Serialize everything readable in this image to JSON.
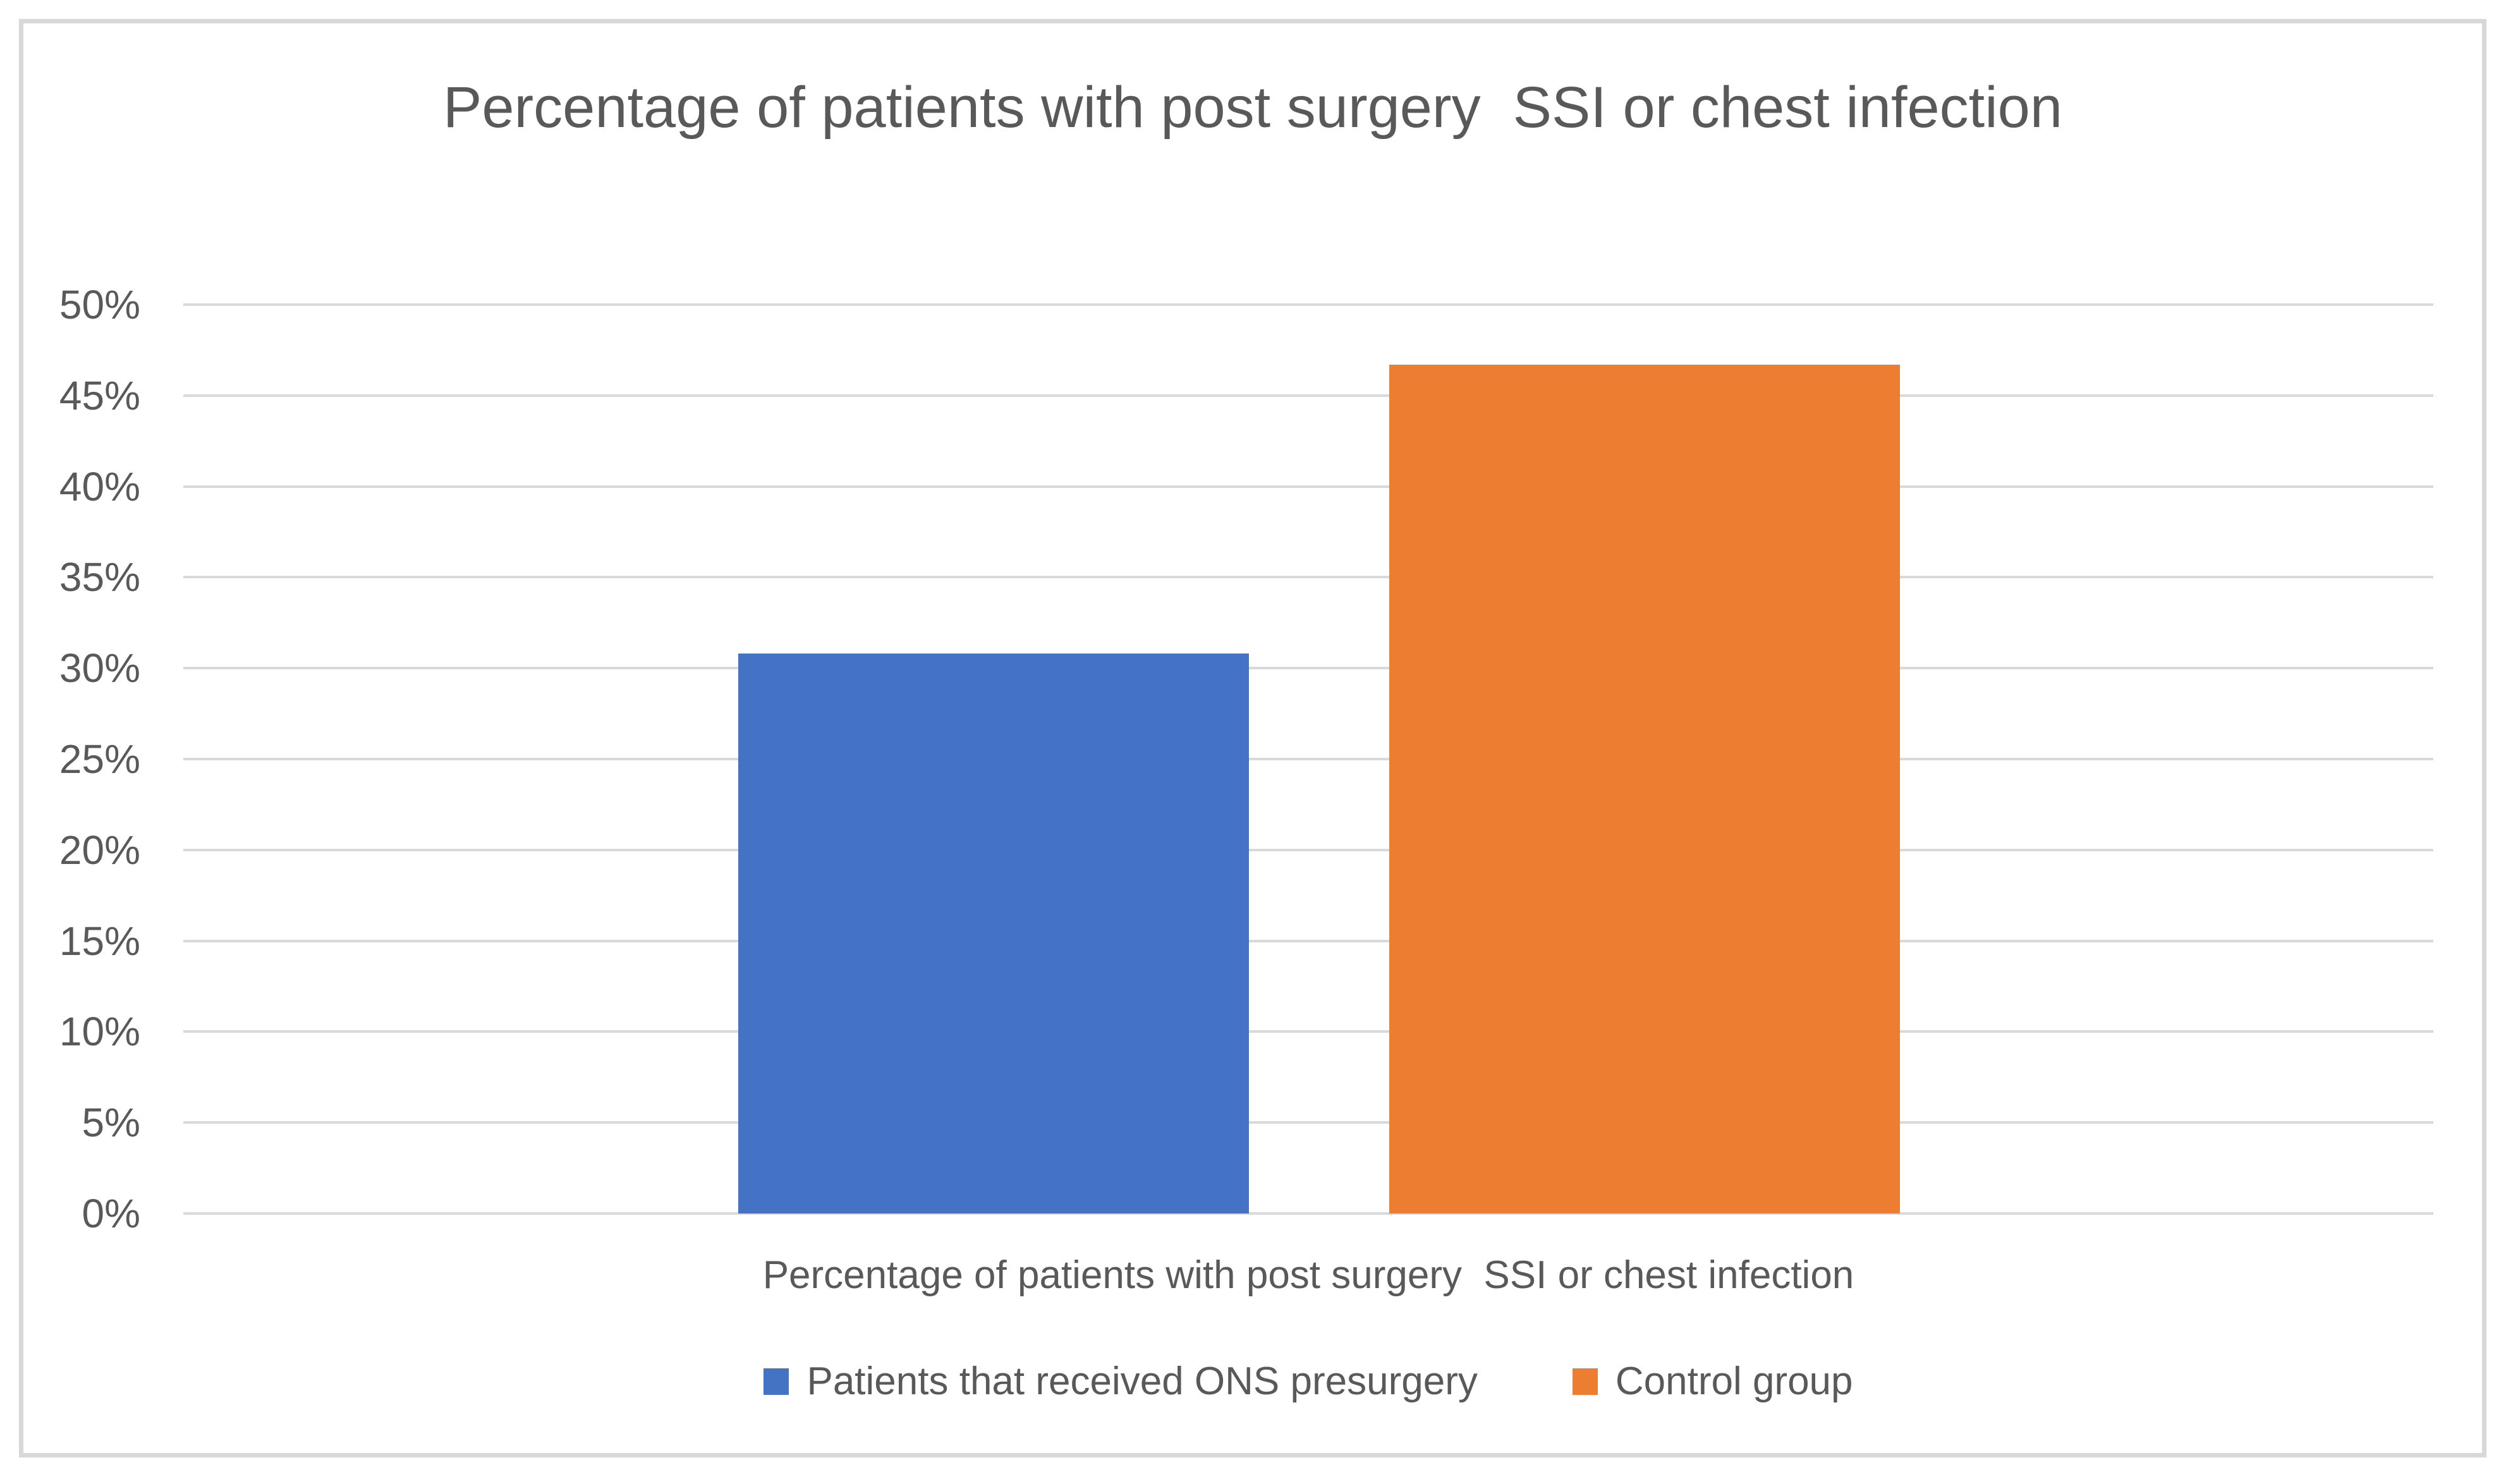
{
  "chart_data": {
    "type": "bar",
    "title": "Percentage of patients with post surgery  SSI or chest infection",
    "categories": [
      "Percentage of patients with post surgery  SSI or chest infection"
    ],
    "series": [
      {
        "name": "Patients that received ONS presurgery",
        "values": [
          30.8
        ],
        "color": "#4472C4"
      },
      {
        "name": "Control group",
        "values": [
          46.7
        ],
        "color": "#ED7D31"
      }
    ],
    "xlabel": "",
    "ylabel": "",
    "ylim": [
      0,
      50
    ],
    "ytick_step": 5,
    "ytick_labels": [
      "0%",
      "5%",
      "10%",
      "15%",
      "20%",
      "25%",
      "30%",
      "35%",
      "40%",
      "45%",
      "50%"
    ],
    "grid": true,
    "legend_position": "bottom"
  },
  "colors": {
    "text": "#595959",
    "gridline": "#d9d9d9",
    "frame_border": "#d8d8d8",
    "background": "#ffffff"
  }
}
